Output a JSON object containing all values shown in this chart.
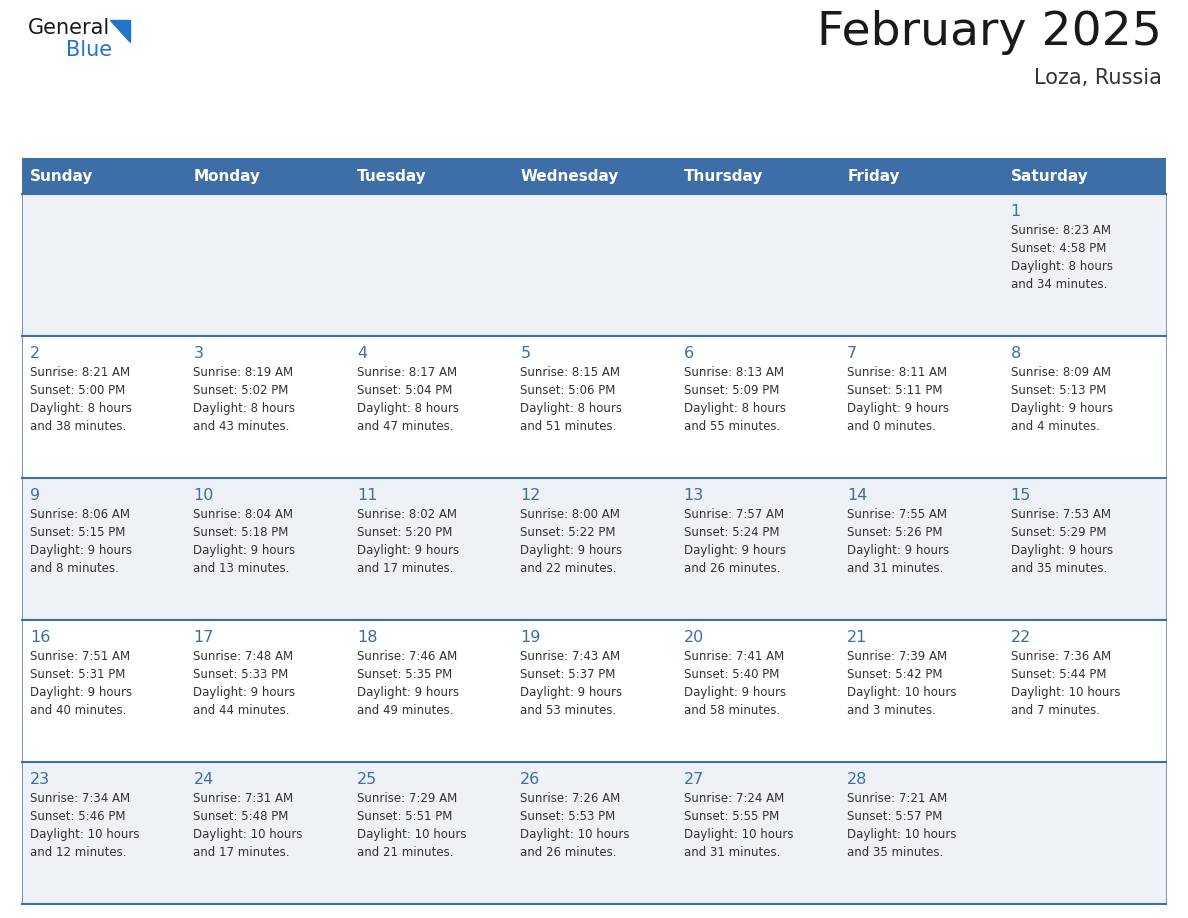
{
  "title": "February 2025",
  "subtitle": "Loza, Russia",
  "days_of_week": [
    "Sunday",
    "Monday",
    "Tuesday",
    "Wednesday",
    "Thursday",
    "Friday",
    "Saturday"
  ],
  "header_color": "#3d6ea8",
  "header_text_color": "#ffffff",
  "title_color": "#1a1a1a",
  "subtitle_color": "#333333",
  "cell_bg_row0": "#eef1f5",
  "cell_bg_row1": "#ffffff",
  "cell_bg_row2": "#eef1f5",
  "cell_bg_row3": "#ffffff",
  "cell_bg_row4": "#eef1f5",
  "line_color": "#3d6ea8",
  "day_num_color": "#3d6ea8",
  "text_color": "#333333",
  "logo_color_general": "#1a1a1a",
  "logo_color_blue": "#2176c7",
  "logo_triangle_color": "#2176c7",
  "calendar_data": [
    [
      {
        "day": 0,
        "sunrise": "",
        "sunset": "",
        "daylight": ""
      },
      {
        "day": 0,
        "sunrise": "",
        "sunset": "",
        "daylight": ""
      },
      {
        "day": 0,
        "sunrise": "",
        "sunset": "",
        "daylight": ""
      },
      {
        "day": 0,
        "sunrise": "",
        "sunset": "",
        "daylight": ""
      },
      {
        "day": 0,
        "sunrise": "",
        "sunset": "",
        "daylight": ""
      },
      {
        "day": 0,
        "sunrise": "",
        "sunset": "",
        "daylight": ""
      },
      {
        "day": 1,
        "sunrise": "8:23 AM",
        "sunset": "4:58 PM",
        "daylight": "8 hours\nand 34 minutes."
      }
    ],
    [
      {
        "day": 2,
        "sunrise": "8:21 AM",
        "sunset": "5:00 PM",
        "daylight": "8 hours\nand 38 minutes."
      },
      {
        "day": 3,
        "sunrise": "8:19 AM",
        "sunset": "5:02 PM",
        "daylight": "8 hours\nand 43 minutes."
      },
      {
        "day": 4,
        "sunrise": "8:17 AM",
        "sunset": "5:04 PM",
        "daylight": "8 hours\nand 47 minutes."
      },
      {
        "day": 5,
        "sunrise": "8:15 AM",
        "sunset": "5:06 PM",
        "daylight": "8 hours\nand 51 minutes."
      },
      {
        "day": 6,
        "sunrise": "8:13 AM",
        "sunset": "5:09 PM",
        "daylight": "8 hours\nand 55 minutes."
      },
      {
        "day": 7,
        "sunrise": "8:11 AM",
        "sunset": "5:11 PM",
        "daylight": "9 hours\nand 0 minutes."
      },
      {
        "day": 8,
        "sunrise": "8:09 AM",
        "sunset": "5:13 PM",
        "daylight": "9 hours\nand 4 minutes."
      }
    ],
    [
      {
        "day": 9,
        "sunrise": "8:06 AM",
        "sunset": "5:15 PM",
        "daylight": "9 hours\nand 8 minutes."
      },
      {
        "day": 10,
        "sunrise": "8:04 AM",
        "sunset": "5:18 PM",
        "daylight": "9 hours\nand 13 minutes."
      },
      {
        "day": 11,
        "sunrise": "8:02 AM",
        "sunset": "5:20 PM",
        "daylight": "9 hours\nand 17 minutes."
      },
      {
        "day": 12,
        "sunrise": "8:00 AM",
        "sunset": "5:22 PM",
        "daylight": "9 hours\nand 22 minutes."
      },
      {
        "day": 13,
        "sunrise": "7:57 AM",
        "sunset": "5:24 PM",
        "daylight": "9 hours\nand 26 minutes."
      },
      {
        "day": 14,
        "sunrise": "7:55 AM",
        "sunset": "5:26 PM",
        "daylight": "9 hours\nand 31 minutes."
      },
      {
        "day": 15,
        "sunrise": "7:53 AM",
        "sunset": "5:29 PM",
        "daylight": "9 hours\nand 35 minutes."
      }
    ],
    [
      {
        "day": 16,
        "sunrise": "7:51 AM",
        "sunset": "5:31 PM",
        "daylight": "9 hours\nand 40 minutes."
      },
      {
        "day": 17,
        "sunrise": "7:48 AM",
        "sunset": "5:33 PM",
        "daylight": "9 hours\nand 44 minutes."
      },
      {
        "day": 18,
        "sunrise": "7:46 AM",
        "sunset": "5:35 PM",
        "daylight": "9 hours\nand 49 minutes."
      },
      {
        "day": 19,
        "sunrise": "7:43 AM",
        "sunset": "5:37 PM",
        "daylight": "9 hours\nand 53 minutes."
      },
      {
        "day": 20,
        "sunrise": "7:41 AM",
        "sunset": "5:40 PM",
        "daylight": "9 hours\nand 58 minutes."
      },
      {
        "day": 21,
        "sunrise": "7:39 AM",
        "sunset": "5:42 PM",
        "daylight": "10 hours\nand 3 minutes."
      },
      {
        "day": 22,
        "sunrise": "7:36 AM",
        "sunset": "5:44 PM",
        "daylight": "10 hours\nand 7 minutes."
      }
    ],
    [
      {
        "day": 23,
        "sunrise": "7:34 AM",
        "sunset": "5:46 PM",
        "daylight": "10 hours\nand 12 minutes."
      },
      {
        "day": 24,
        "sunrise": "7:31 AM",
        "sunset": "5:48 PM",
        "daylight": "10 hours\nand 17 minutes."
      },
      {
        "day": 25,
        "sunrise": "7:29 AM",
        "sunset": "5:51 PM",
        "daylight": "10 hours\nand 21 minutes."
      },
      {
        "day": 26,
        "sunrise": "7:26 AM",
        "sunset": "5:53 PM",
        "daylight": "10 hours\nand 26 minutes."
      },
      {
        "day": 27,
        "sunrise": "7:24 AM",
        "sunset": "5:55 PM",
        "daylight": "10 hours\nand 31 minutes."
      },
      {
        "day": 28,
        "sunrise": "7:21 AM",
        "sunset": "5:57 PM",
        "daylight": "10 hours\nand 35 minutes."
      },
      {
        "day": 0,
        "sunrise": "",
        "sunset": "",
        "daylight": ""
      }
    ]
  ]
}
